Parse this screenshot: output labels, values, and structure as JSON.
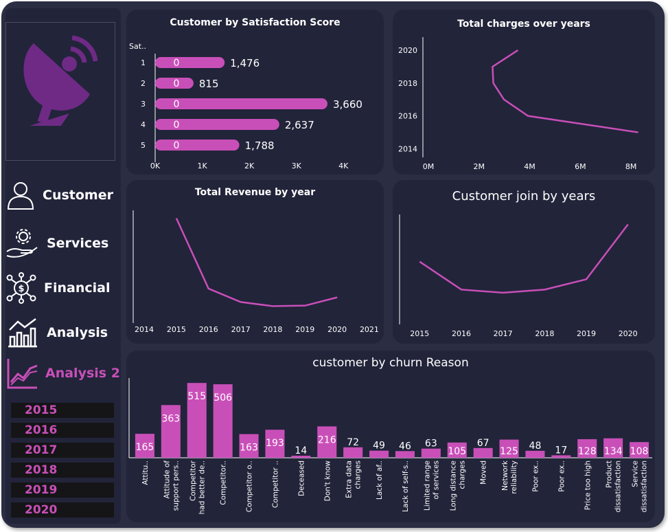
{
  "nav": {
    "items": [
      {
        "label": "Customer",
        "icon": "person-icon"
      },
      {
        "label": "Services",
        "icon": "gear-hand-icon"
      },
      {
        "label": "Financial",
        "icon": "dollar-network-icon"
      },
      {
        "label": "Analysis",
        "icon": "bar-chart-icon"
      },
      {
        "label": "Analysis 2",
        "icon": "line-chart-icon",
        "active": true
      }
    ],
    "years": [
      "2015",
      "2016",
      "2017",
      "2018",
      "2019",
      "2020"
    ]
  },
  "colors": {
    "accent": "#c94fb8",
    "card": "#22243a",
    "background": "#2b2d42"
  },
  "chart_data": [
    {
      "type": "bar",
      "orientation": "horizontal",
      "title": "Customer by Satisfaction Score",
      "ylabel": "Sat..",
      "categories": [
        "1",
        "2",
        "3",
        "4",
        "5"
      ],
      "values": [
        1476,
        815,
        3660,
        2637,
        1788
      ],
      "value_labels": [
        "1,476",
        "815",
        "3,660",
        "2,637",
        "1,788"
      ],
      "inner_labels": [
        "0",
        "0",
        "0",
        "0",
        "0"
      ],
      "xticks": [
        0,
        1000,
        2000,
        3000,
        4000
      ],
      "xtick_labels": [
        "0K",
        "1K",
        "2K",
        "3K",
        "4K"
      ],
      "xlim": [
        0,
        4200
      ]
    },
    {
      "type": "line",
      "title": "Total charges over years",
      "x": [
        8500000,
        4150000,
        3200000,
        2780000,
        2750000,
        3750000
      ],
      "y": [
        2015,
        2016,
        2017,
        2018,
        2019,
        2020
      ],
      "xticks": [
        0,
        2000000,
        4000000,
        6000000,
        8000000
      ],
      "xtick_labels": [
        "0M",
        "2M",
        "4M",
        "6M",
        "8M"
      ],
      "yticks": [
        2014,
        2016,
        2018,
        2020
      ],
      "ytick_labels": [
        "2014",
        "2016",
        "2018",
        "2020"
      ],
      "xlim": [
        0,
        9000000
      ],
      "ylim": [
        2013.6,
        2020.8
      ]
    },
    {
      "type": "line",
      "title": "Total Revenue by year",
      "x": [
        2015,
        2016,
        2017,
        2018,
        2019,
        2020
      ],
      "y": [
        100,
        32,
        19,
        15,
        15.5,
        23.5
      ],
      "xticks": [
        2014,
        2015,
        2016,
        2017,
        2018,
        2019,
        2020,
        2021
      ],
      "xtick_labels": [
        "2014",
        "2015",
        "2016",
        "2017",
        "2018",
        "2019",
        "2020",
        "2021"
      ],
      "xlim": [
        2013.7,
        2021.3
      ],
      "ylim": [
        0,
        105
      ]
    },
    {
      "type": "line",
      "title": "Customer join by years",
      "x": [
        2015,
        2016,
        2017,
        2018,
        2019,
        2020
      ],
      "y": [
        62,
        35,
        32,
        35,
        45,
        98
      ],
      "xticks": [
        2015,
        2016,
        2017,
        2018,
        2019,
        2020
      ],
      "xtick_labels": [
        "2015",
        "2016",
        "2017",
        "2018",
        "2019",
        "2020"
      ],
      "xlim": [
        2014.55,
        2020.45
      ],
      "ylim": [
        0,
        105
      ]
    },
    {
      "type": "bar",
      "title": "customer by churn Reason",
      "categories": [
        "Attitu..",
        "Attitude of support pers..",
        "Competitor had better de..",
        "Competitor..",
        "Competitor o..",
        "Competitor ..",
        "Deceased",
        "Don't know",
        "Extra data charges",
        "Lack of af..",
        "Lack of self-s..",
        "Limited range of services",
        "Long distance charges",
        "Moved",
        "Network reliability",
        "Poor ex..",
        "Poor ex..",
        "Price too high",
        "Product dissatisfaction",
        "Service dissatisfaction"
      ],
      "category_lines": [
        [
          "Attitu.."
        ],
        [
          "Attitude of",
          "support pers.."
        ],
        [
          "Competitor",
          "had better de.."
        ],
        [
          "Competitor.."
        ],
        [
          "Competitor o.."
        ],
        [
          "Competitor .."
        ],
        [
          "Deceased"
        ],
        [
          "Don't know"
        ],
        [
          "Extra data",
          "charges"
        ],
        [
          "Lack of af.."
        ],
        [
          "Lack of self-s.."
        ],
        [
          "Limited range",
          "of services"
        ],
        [
          "Long distance",
          "charges"
        ],
        [
          "Moved"
        ],
        [
          "Network",
          "reliability"
        ],
        [
          "Poor ex.."
        ],
        [
          "Poor ex.."
        ],
        [
          "Price too high"
        ],
        [
          "Product",
          "dissatisfaction"
        ],
        [
          "Service",
          "dissatisfaction"
        ]
      ],
      "values": [
        165,
        363,
        515,
        506,
        163,
        193,
        14,
        216,
        72,
        49,
        46,
        63,
        105,
        67,
        125,
        48,
        17,
        128,
        134,
        108
      ],
      "ylim": [
        0,
        530
      ]
    }
  ]
}
